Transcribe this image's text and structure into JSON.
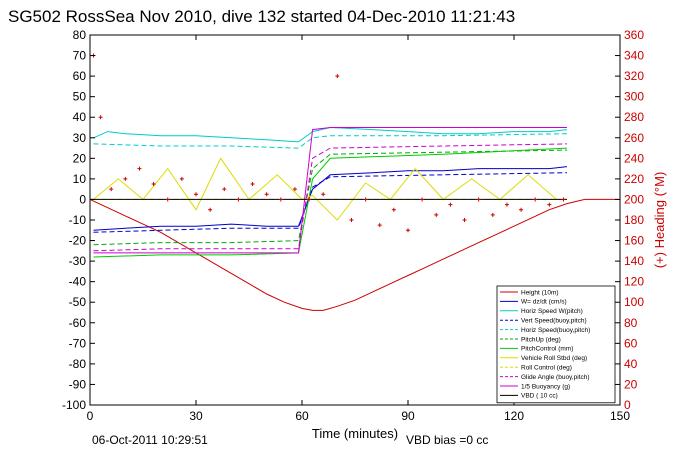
{
  "chart_data": {
    "type": "line",
    "title": "SG502 RossSea Nov 2010, dive 132 started 04-Dec-2010 11:21:43",
    "xlabel": "Time (minutes)",
    "ylabel_right": "(+) Heading (°M)",
    "xlim": [
      0,
      150
    ],
    "ylim": [
      -100,
      80
    ],
    "ylim_right": [
      0,
      360
    ],
    "x_ticks": [
      "0",
      "30",
      "60",
      "90",
      "120",
      "150"
    ],
    "y_ticks": [
      "-100",
      "-90",
      "-80",
      "-70",
      "-60",
      "-50",
      "-40",
      "-30",
      "-20",
      "-10",
      "0",
      "10",
      "20",
      "30",
      "40",
      "50",
      "60",
      "70",
      "80"
    ],
    "y_ticks_right": [
      "0",
      "20",
      "40",
      "60",
      "80",
      "100",
      "120",
      "140",
      "160",
      "180",
      "200",
      "220",
      "240",
      "260",
      "280",
      "300",
      "320",
      "340",
      "360"
    ],
    "legend_position": "bottom-right",
    "series": [
      {
        "name": "Height (10m)",
        "color": "#cc0000",
        "style": "solid",
        "x": [
          0,
          5,
          10,
          15,
          20,
          25,
          30,
          35,
          40,
          45,
          50,
          55,
          60,
          63,
          66,
          70,
          75,
          80,
          85,
          90,
          95,
          100,
          105,
          110,
          115,
          120,
          125,
          130,
          135,
          140,
          145,
          150
        ],
        "y": [
          0,
          -4,
          -8,
          -12,
          -16,
          -21,
          -26,
          -31,
          -36,
          -41,
          -46,
          -50,
          -53,
          -54,
          -54,
          -52,
          -49,
          -45,
          -41,
          -37,
          -33,
          -29,
          -25,
          -21,
          -17,
          -13,
          -9,
          -5,
          -2,
          0,
          0,
          0
        ]
      },
      {
        "name": "W= dz/dt (cm/s)",
        "color": "#0000cc",
        "style": "solid",
        "x": [
          1,
          10,
          20,
          30,
          40,
          50,
          59,
          63,
          68,
          80,
          90,
          100,
          110,
          120,
          130,
          135
        ],
        "y": [
          -15,
          -14,
          -13,
          -13,
          -12,
          -13,
          -13,
          5,
          12,
          13,
          14,
          14,
          15,
          15,
          15,
          16
        ]
      },
      {
        "name": "Horiz Speed W(pitch)",
        "color": "#00cccc",
        "style": "solid",
        "x": [
          1,
          5,
          10,
          20,
          30,
          40,
          50,
          59,
          63,
          68,
          80,
          90,
          100,
          110,
          120,
          130,
          135
        ],
        "y": [
          30,
          33,
          32,
          31,
          31,
          30,
          29,
          28,
          33,
          35,
          34,
          33,
          32,
          32,
          33,
          33,
          34
        ]
      },
      {
        "name": "Vert Speed(buoy,pitch)",
        "color": "#0000cc",
        "style": "dashed",
        "x": [
          1,
          20,
          40,
          59,
          63,
          68,
          100,
          135
        ],
        "y": [
          -16,
          -15,
          -14,
          -14,
          6,
          11,
          12,
          13
        ]
      },
      {
        "name": "Horiz Speed(buoy,pitch)",
        "color": "#00cccc",
        "style": "dashed",
        "x": [
          1,
          20,
          40,
          59,
          63,
          68,
          100,
          135
        ],
        "y": [
          27,
          26,
          26,
          25,
          30,
          31,
          31,
          32
        ]
      },
      {
        "name": "PitchUp (deg)",
        "color": "#00aa00",
        "style": "dashed",
        "x": [
          1,
          20,
          40,
          59,
          63,
          68,
          100,
          135
        ],
        "y": [
          -22,
          -21,
          -21,
          -20,
          15,
          22,
          23,
          24
        ]
      },
      {
        "name": "PitchControl (mm)",
        "color": "#00cc00",
        "style": "solid",
        "x": [
          1,
          20,
          40,
          59,
          63,
          68,
          100,
          135
        ],
        "y": [
          -28,
          -27,
          -27,
          -26,
          10,
          20,
          22,
          25
        ]
      },
      {
        "name": "Vehicle Roll Stbd (deg)",
        "color": "#dddd00",
        "style": "solid",
        "x": [
          1,
          8,
          15,
          22,
          30,
          37,
          45,
          53,
          60,
          63,
          70,
          78,
          85,
          92,
          100,
          108,
          116,
          124,
          132,
          135
        ],
        "y": [
          0,
          10,
          0,
          15,
          -5,
          20,
          0,
          12,
          0,
          2,
          -10,
          8,
          0,
          15,
          0,
          10,
          0,
          12,
          0,
          0
        ]
      },
      {
        "name": "Roll Control (deg)",
        "color": "#dddd00",
        "style": "dashed",
        "x": [
          1,
          30,
          60,
          63,
          135
        ],
        "y": [
          0,
          0,
          0,
          0,
          0
        ]
      },
      {
        "name": "Glide Angle (buoy,pitch)",
        "color": "#cc00cc",
        "style": "dashed",
        "x": [
          1,
          20,
          40,
          59,
          63,
          68,
          100,
          135
        ],
        "y": [
          -25,
          -24,
          -24,
          -24,
          20,
          25,
          26,
          27
        ]
      },
      {
        "name": "1/5 Buoyancy (g)",
        "color": "#cc00cc",
        "style": "solid",
        "x": [
          1,
          20,
          40,
          59,
          63,
          68,
          100,
          135
        ],
        "y": [
          -26,
          -26,
          -26,
          -26,
          34,
          35,
          35,
          35
        ]
      },
      {
        "name": "VBD ( 10 cc)",
        "color": "#000000",
        "style": "solid",
        "x": [
          0,
          135
        ],
        "y": [
          0,
          0
        ]
      }
    ],
    "heading": {
      "name": "(+) Heading (°M)",
      "color": "#cc0000",
      "axis": "right",
      "x": [
        1,
        3,
        6,
        10,
        14,
        18,
        22,
        26,
        30,
        34,
        38,
        42,
        46,
        50,
        54,
        58,
        62,
        66,
        70,
        74,
        78,
        82,
        86,
        90,
        94,
        98,
        102,
        106,
        110,
        114,
        118,
        122,
        126,
        130,
        134
      ],
      "y": [
        340,
        280,
        210,
        220,
        230,
        215,
        200,
        220,
        205,
        190,
        210,
        200,
        215,
        205,
        200,
        210,
        200,
        205,
        320,
        180,
        200,
        175,
        190,
        170,
        200,
        185,
        195,
        180,
        200,
        185,
        195,
        190,
        200,
        195,
        200
      ]
    },
    "footer": {
      "date": "06-Oct-2011 10:29:51",
      "vbd_bias": "VBD bias =0 cc"
    }
  }
}
